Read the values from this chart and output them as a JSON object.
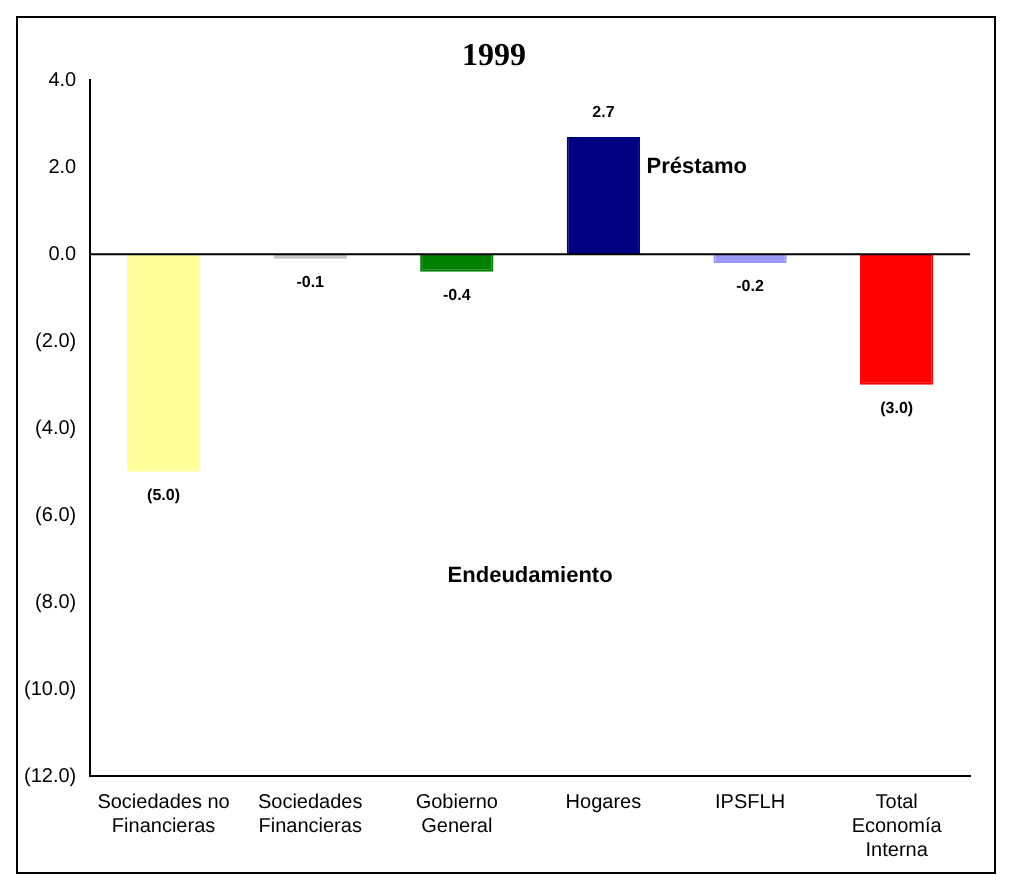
{
  "chart_data": {
    "type": "bar",
    "title": "1999",
    "categories": [
      "Sociedades no Financieras",
      "Sociedades Financieras",
      "Gobierno General",
      "Hogares",
      "IPSFLH",
      "Total Economía Interna"
    ],
    "values": [
      -5.0,
      -0.1,
      -0.4,
      2.7,
      -0.2,
      -3.0
    ],
    "colors": [
      "#ffff99",
      "#c0c0c0",
      "#008000",
      "#000080",
      "#9999ff",
      "#ff0000"
    ],
    "value_labels": [
      "(5.0)",
      "-0.1",
      "-0.4",
      "2.7",
      "-0.2",
      "(3.0)"
    ],
    "ylim": [
      -12,
      4
    ],
    "yticks": [
      {
        "value": 4,
        "label": "4.0"
      },
      {
        "value": 2,
        "label": "2.0"
      },
      {
        "value": 0,
        "label": "0.0"
      },
      {
        "value": -2,
        "label": "(2.0)"
      },
      {
        "value": -4,
        "label": "(4.0)"
      },
      {
        "value": -6,
        "label": "(6.0)"
      },
      {
        "value": -8,
        "label": "(8.0)"
      },
      {
        "value": -10,
        "label": "(10.0)"
      },
      {
        "value": -12,
        "label": "(12.0)"
      }
    ],
    "annotations": [
      "Préstamo",
      "Endeudamiento"
    ],
    "ref_lines": [
      {
        "axis": "y",
        "value": 0,
        "color": "#000000"
      }
    ],
    "grid": false,
    "legend": false
  }
}
